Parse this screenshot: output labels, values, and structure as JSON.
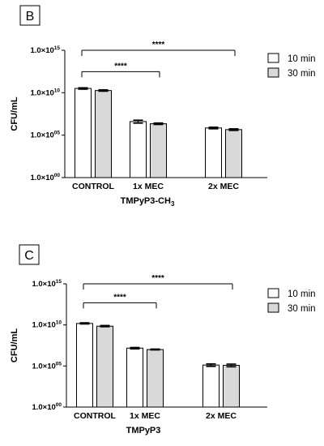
{
  "chart_data": [
    {
      "type": "bar",
      "panel_label": "B",
      "xlabel_main": "TMPyP3-CH",
      "xlabel_sub": "3",
      "ylabel": "CFU/mL",
      "yscale": "log",
      "ylim": [
        1,
        1000000000000000.0
      ],
      "yticks": [
        {
          "mant": "1.0×10",
          "exp": "00",
          "value": 1
        },
        {
          "mant": "1.0×10",
          "exp": "05",
          "value": 100000
        },
        {
          "mant": "1.0×10",
          "exp": "10",
          "value": 10000000000
        },
        {
          "mant": "1.0×10",
          "exp": "15",
          "value": 1000000000000000
        }
      ],
      "categories": [
        "CONTROL",
        "1x MEC",
        "2x MEC"
      ],
      "series": [
        {
          "name": "10 min",
          "color": "#ffffff",
          "values": [
            32000000000.0,
            4000000.0,
            700000.0
          ],
          "err_low": [
            26000000000.0,
            2600000.0,
            560000.0
          ],
          "err_high": [
            38000000000.0,
            5800000.0,
            860000.0
          ]
        },
        {
          "name": "30 min",
          "color": "#d9d9d9",
          "values": [
            18000000000.0,
            2200000.0,
            450000.0
          ],
          "err_low": [
            15000000000.0,
            1800000.0,
            360000.0
          ],
          "err_high": [
            22000000000.0,
            2700000.0,
            560000.0
          ]
        }
      ],
      "significance": [
        {
          "from": 0,
          "to": 1,
          "y": 3000000000000.0,
          "label": "****"
        },
        {
          "from": 0,
          "to": 2,
          "y": 1000000000000000.0,
          "label": "****"
        }
      ],
      "legend_position": "top-right"
    },
    {
      "type": "bar",
      "panel_label": "C",
      "xlabel_main": "TMPyP3",
      "xlabel_sub": "",
      "ylabel": "CFU/mL",
      "yscale": "log",
      "ylim": [
        1,
        1000000000000000.0
      ],
      "yticks": [
        {
          "mant": "1.0×10",
          "exp": "00",
          "value": 1
        },
        {
          "mant": "1.0×10",
          "exp": "05",
          "value": 100000
        },
        {
          "mant": "1.0×10",
          "exp": "10",
          "value": 10000000000
        },
        {
          "mant": "1.0×10",
          "exp": "15",
          "value": 1000000000000000
        }
      ],
      "categories": [
        "CONTROL",
        "1x MEC",
        "2x MEC"
      ],
      "series": [
        {
          "name": "10 min",
          "color": "#ffffff",
          "values": [
            15000000000.0,
            15000000.0,
            130000.0
          ],
          "err_low": [
            13000000000.0,
            12000000.0,
            90000.0
          ],
          "err_high": [
            18000000000.0,
            18000000.0,
            180000.0
          ]
        },
        {
          "name": "30 min",
          "color": "#d9d9d9",
          "values": [
            7000000000.0,
            10000000.0,
            120000.0
          ],
          "err_low": [
            6000000000.0,
            9000000.0,
            80000.0
          ],
          "err_high": [
            8500000000.0,
            11500000.0,
            170000.0
          ]
        }
      ],
      "significance": [
        {
          "from": 0,
          "to": 1,
          "y": 5000000000000.0,
          "label": "****"
        },
        {
          "from": 0,
          "to": 2,
          "y": 1000000000000000.0,
          "label": "****"
        }
      ],
      "legend_position": "top-right"
    }
  ]
}
